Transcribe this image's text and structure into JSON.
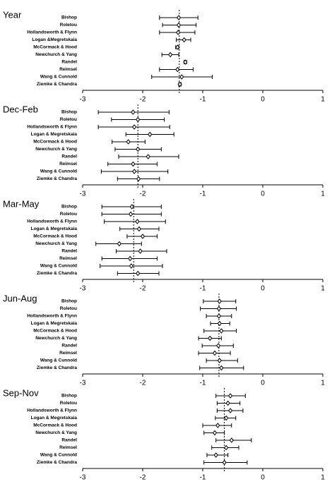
{
  "chart_data": [
    {
      "type": "forest",
      "title": "Year",
      "categories": [
        "Bishop",
        "Roletou",
        "Hollandsworth & Flynn",
        "Logan &Megretskaia",
        "McCormack & Hood",
        "Newchurch & Yang",
        "Randel",
        "Reimsel",
        "Wang & Cunnold",
        "Ziemke & Chandra"
      ],
      "values": [
        -1.4,
        -1.4,
        -1.41,
        -1.31,
        -1.42,
        -1.54,
        -1.29,
        -1.42,
        -1.35,
        -1.38
      ],
      "lows": [
        -1.72,
        -1.67,
        -1.72,
        -1.44,
        -1.45,
        -1.68,
        -1.31,
        -1.72,
        -1.85,
        -1.4
      ],
      "highs": [
        -1.08,
        -1.11,
        -1.13,
        -1.2,
        -1.4,
        -1.4,
        -1.27,
        -1.16,
        -0.84,
        -1.36
      ],
      "reference": -1.39,
      "xlim": [
        -3,
        1
      ],
      "xticks": [
        -3,
        -2,
        -1,
        0,
        1
      ],
      "color": "#000000"
    },
    {
      "type": "forest",
      "title": "Dec-Feb",
      "categories": [
        "Bishop",
        "Roletou",
        "Hollandsworth & Flynn",
        "Logan & Megretskaia",
        "McCormack & Hood",
        "Newchurch & Yang",
        "Randel",
        "Reimsel",
        "Wang & Cunnold",
        "Ziemke & Chandra"
      ],
      "values": [
        -2.16,
        -2.08,
        -2.14,
        -1.88,
        -2.24,
        -2.08,
        -1.91,
        -2.16,
        -2.14,
        -2.07
      ],
      "lows": [
        -2.74,
        -2.52,
        -2.74,
        -2.28,
        -2.51,
        -2.46,
        -2.4,
        -2.58,
        -2.69,
        -2.42
      ],
      "highs": [
        -1.56,
        -1.64,
        -1.55,
        -1.48,
        -1.96,
        -1.69,
        -1.4,
        -1.76,
        -1.58,
        -1.72
      ],
      "reference": -2.08,
      "xlim": [
        -3,
        1
      ],
      "xticks": [
        -3,
        -2,
        -1,
        0,
        1
      ],
      "color": "#000000"
    },
    {
      "type": "forest",
      "title": "Mar-May",
      "categories": [
        "Bishop",
        "Roletou",
        "Hollandsworth & Flynn",
        "Logan & Megretskaia",
        "McCormack & Hood",
        "Newchurch & Yang",
        "Randel",
        "Reimsel",
        "Wang & Cunnold",
        "Ziemke & Chandra"
      ],
      "values": [
        -2.18,
        -2.2,
        -2.09,
        -2.06,
        -2.0,
        -2.39,
        -2.04,
        -2.21,
        -2.19,
        -2.08
      ],
      "lows": [
        -2.68,
        -2.68,
        -2.64,
        -2.38,
        -2.26,
        -2.78,
        -2.44,
        -2.68,
        -2.71,
        -2.42
      ],
      "highs": [
        -1.69,
        -1.69,
        -1.62,
        -1.73,
        -1.76,
        -2.02,
        -1.6,
        -1.76,
        -1.67,
        -1.73
      ],
      "reference": -2.15,
      "xlim": [
        -3,
        1
      ],
      "xticks": [
        -3,
        -2,
        -1,
        0,
        1
      ],
      "color": "#000000"
    },
    {
      "type": "forest",
      "title": "Jun-Aug",
      "categories": [
        "Bishop",
        "Roletou",
        "Hollandsworth & Flynn",
        "Logan & Megretskaia",
        "McCormack & Hood",
        "Newchurch & Yang",
        "Randel",
        "Reimsel",
        "Wang & Cunnold",
        "Ziemke & Chandra"
      ],
      "values": [
        -0.72,
        -0.73,
        -0.73,
        -0.72,
        -0.69,
        -0.88,
        -0.74,
        -0.8,
        -0.72,
        -0.69
      ],
      "lows": [
        -0.99,
        -1.04,
        -0.94,
        -0.87,
        -0.98,
        -1.07,
        -1.01,
        -1.07,
        -0.94,
        -1.05
      ],
      "highs": [
        -0.45,
        -0.44,
        -0.52,
        -0.55,
        -0.44,
        -0.69,
        -0.49,
        -0.54,
        -0.42,
        -0.32
      ],
      "reference": -0.73,
      "xlim": [
        -3,
        1
      ],
      "xticks": [
        -3,
        -2,
        -1,
        0,
        1
      ],
      "color": "#000000"
    },
    {
      "type": "forest",
      "title": "Sep-Nov",
      "categories": [
        "Bishop",
        "Roletou",
        "Hollandsworth & Flynn",
        "Logan & Megretskaia",
        "McCormack & Hood",
        "Newchurch & Yang",
        "Randel",
        "Reimsel",
        "Wang & Cunnold",
        "Ziemke & Chandra"
      ],
      "values": [
        -0.54,
        -0.58,
        -0.54,
        -0.61,
        -0.75,
        -0.8,
        -0.52,
        -0.61,
        -0.78,
        -0.64
      ],
      "lows": [
        -0.78,
        -0.76,
        -0.76,
        -0.79,
        -1.0,
        -0.98,
        -0.78,
        -0.85,
        -0.93,
        -0.98
      ],
      "highs": [
        -0.29,
        -0.38,
        -0.33,
        -0.45,
        -0.52,
        -0.64,
        -0.19,
        -0.4,
        -0.58,
        -0.26
      ],
      "reference": -0.64,
      "xlim": [
        -3,
        1
      ],
      "xticks": [
        -3,
        -2,
        -1,
        0,
        1
      ],
      "color": "#000000"
    }
  ]
}
